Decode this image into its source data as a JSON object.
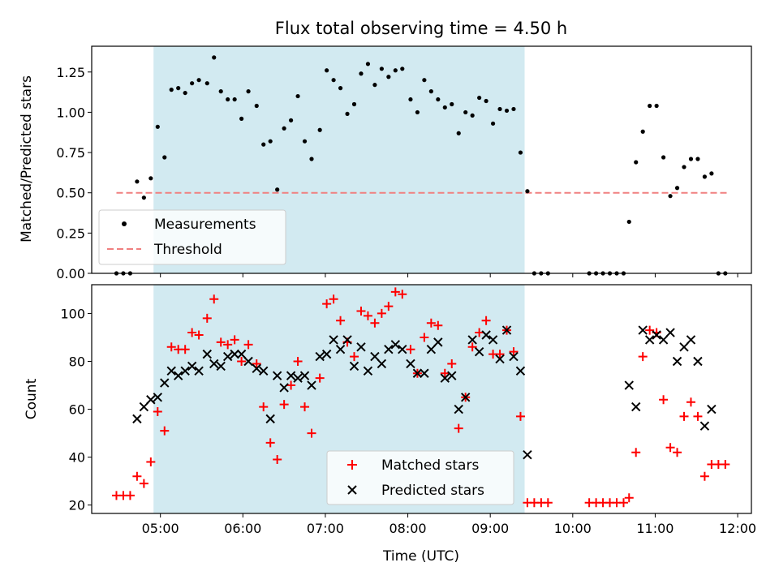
{
  "chart_data": [
    {
      "type": "scatter",
      "title": "Flux total observing time = 4.50 h",
      "xlabel": "",
      "ylabel": "Matched/Predicted stars",
      "xlim": [
        "04:10",
        "12:10"
      ],
      "ylim": [
        0,
        1.41
      ],
      "yticks": [
        "0.00",
        "0.25",
        "0.50",
        "0.75",
        "1.00",
        "1.25"
      ],
      "shaded_interval": [
        "04:55",
        "09:25"
      ],
      "shade_color": "#add8e6",
      "threshold": {
        "name": "Threshold",
        "value": 0.5,
        "x_range": [
          "04:28",
          "11:52"
        ],
        "color": "#f08080"
      },
      "series": [
        {
          "name": "Measurements",
          "color": "#000000",
          "points": [
            [
              "04:28",
              0
            ],
            [
              "04:33",
              0
            ],
            [
              "04:38",
              0
            ],
            [
              "04:43",
              0.57
            ],
            [
              "04:48",
              0.47
            ],
            [
              "04:53",
              0.59
            ],
            [
              "04:58",
              0.91
            ],
            [
              "05:03",
              0.72
            ],
            [
              "05:08",
              1.14
            ],
            [
              "05:13",
              1.15
            ],
            [
              "05:18",
              1.12
            ],
            [
              "05:23",
              1.18
            ],
            [
              "05:28",
              1.2
            ],
            [
              "05:34",
              1.18
            ],
            [
              "05:39",
              1.34
            ],
            [
              "05:44",
              1.13
            ],
            [
              "05:49",
              1.08
            ],
            [
              "05:54",
              1.08
            ],
            [
              "05:59",
              0.96
            ],
            [
              "06:04",
              1.13
            ],
            [
              "06:10",
              1.04
            ],
            [
              "06:15",
              0.8
            ],
            [
              "06:20",
              0.82
            ],
            [
              "06:25",
              0.52
            ],
            [
              "06:30",
              0.9
            ],
            [
              "06:35",
              0.95
            ],
            [
              "06:40",
              1.1
            ],
            [
              "06:45",
              0.82
            ],
            [
              "06:50",
              0.71
            ],
            [
              "06:56",
              0.89
            ],
            [
              "07:01",
              1.26
            ],
            [
              "07:06",
              1.2
            ],
            [
              "07:11",
              1.15
            ],
            [
              "07:16",
              0.99
            ],
            [
              "07:21",
              1.05
            ],
            [
              "07:26",
              1.24
            ],
            [
              "07:31",
              1.3
            ],
            [
              "07:36",
              1.17
            ],
            [
              "07:41",
              1.27
            ],
            [
              "07:46",
              1.22
            ],
            [
              "07:51",
              1.26
            ],
            [
              "07:56",
              1.27
            ],
            [
              "08:02",
              1.08
            ],
            [
              "08:07",
              1
            ],
            [
              "08:12",
              1.2
            ],
            [
              "08:17",
              1.13
            ],
            [
              "08:22",
              1.08
            ],
            [
              "08:27",
              1.03
            ],
            [
              "08:32",
              1.05
            ],
            [
              "08:37",
              0.87
            ],
            [
              "08:42",
              1
            ],
            [
              "08:47",
              0.98
            ],
            [
              "08:52",
              1.09
            ],
            [
              "08:57",
              1.07
            ],
            [
              "09:02",
              0.93
            ],
            [
              "09:07",
              1.02
            ],
            [
              "09:12",
              1.01
            ],
            [
              "09:17",
              1.02
            ],
            [
              "09:22",
              0.75
            ],
            [
              "09:27",
              0.51
            ],
            [
              "09:32",
              0
            ],
            [
              "09:37",
              0
            ],
            [
              "09:42",
              0
            ],
            [
              "10:12",
              0
            ],
            [
              "10:17",
              0
            ],
            [
              "10:22",
              0
            ],
            [
              "10:27",
              0
            ],
            [
              "10:32",
              0
            ],
            [
              "10:37",
              0
            ],
            [
              "10:41",
              0.32
            ],
            [
              "10:46",
              0.69
            ],
            [
              "10:51",
              0.88
            ],
            [
              "10:56",
              1.04
            ],
            [
              "11:01",
              1.04
            ],
            [
              "11:06",
              0.72
            ],
            [
              "11:11",
              0.48
            ],
            [
              "11:16",
              0.53
            ],
            [
              "11:21",
              0.66
            ],
            [
              "11:26",
              0.71
            ],
            [
              "11:31",
              0.71
            ],
            [
              "11:36",
              0.6
            ],
            [
              "11:41",
              0.62
            ],
            [
              "11:46",
              0
            ],
            [
              "11:51",
              0
            ]
          ]
        }
      ],
      "legend": [
        "Measurements",
        "Threshold"
      ],
      "legend_position": "lower-left"
    },
    {
      "type": "scatter",
      "title": "",
      "xlabel": "Time (UTC)",
      "ylabel": "Count",
      "xlim": [
        "04:10",
        "12:10"
      ],
      "ylim": [
        16.5,
        112
      ],
      "xticks": [
        "05:00",
        "06:00",
        "07:00",
        "08:00",
        "09:00",
        "10:00",
        "11:00",
        "12:00"
      ],
      "yticks": [
        "20",
        "40",
        "60",
        "80",
        "100"
      ],
      "shaded_interval": [
        "04:55",
        "09:25"
      ],
      "shade_color": "#add8e6",
      "series": [
        {
          "name": "Matched stars",
          "marker": "plus",
          "color": "#ff0000",
          "points": [
            [
              "04:28",
              24
            ],
            [
              "04:33",
              24
            ],
            [
              "04:38",
              24
            ],
            [
              "04:43",
              32
            ],
            [
              "04:48",
              29
            ],
            [
              "04:53",
              38
            ],
            [
              "04:58",
              59
            ],
            [
              "05:03",
              51
            ],
            [
              "05:08",
              86
            ],
            [
              "05:13",
              85
            ],
            [
              "05:18",
              85
            ],
            [
              "05:23",
              92
            ],
            [
              "05:28",
              91
            ],
            [
              "05:34",
              98
            ],
            [
              "05:39",
              106
            ],
            [
              "05:44",
              88
            ],
            [
              "05:49",
              87
            ],
            [
              "05:54",
              89
            ],
            [
              "05:59",
              80
            ],
            [
              "06:04",
              87
            ],
            [
              "06:10",
              79
            ],
            [
              "06:15",
              61
            ],
            [
              "06:20",
              46
            ],
            [
              "06:25",
              39
            ],
            [
              "06:30",
              62
            ],
            [
              "06:35",
              70
            ],
            [
              "06:40",
              80
            ],
            [
              "06:45",
              61
            ],
            [
              "06:50",
              50
            ],
            [
              "06:56",
              73
            ],
            [
              "07:01",
              104
            ],
            [
              "07:06",
              106
            ],
            [
              "07:11",
              97
            ],
            [
              "07:16",
              88
            ],
            [
              "07:21",
              82
            ],
            [
              "07:26",
              101
            ],
            [
              "07:31",
              99
            ],
            [
              "07:36",
              96
            ],
            [
              "07:41",
              100
            ],
            [
              "07:46",
              103
            ],
            [
              "07:51",
              109
            ],
            [
              "07:56",
              108
            ],
            [
              "08:02",
              85
            ],
            [
              "08:07",
              75
            ],
            [
              "08:12",
              90
            ],
            [
              "08:17",
              96
            ],
            [
              "08:22",
              95
            ],
            [
              "08:27",
              75
            ],
            [
              "08:32",
              79
            ],
            [
              "08:37",
              52
            ],
            [
              "08:42",
              65
            ],
            [
              "08:47",
              86
            ],
            [
              "08:52",
              92
            ],
            [
              "08:57",
              97
            ],
            [
              "09:02",
              83
            ],
            [
              "09:07",
              83
            ],
            [
              "09:12",
              93
            ],
            [
              "09:17",
              84
            ],
            [
              "09:22",
              57
            ],
            [
              "09:27",
              21
            ],
            [
              "09:32",
              21
            ],
            [
              "09:37",
              21
            ],
            [
              "09:42",
              21
            ],
            [
              "10:12",
              21
            ],
            [
              "10:17",
              21
            ],
            [
              "10:22",
              21
            ],
            [
              "10:27",
              21
            ],
            [
              "10:32",
              21
            ],
            [
              "10:37",
              21
            ],
            [
              "10:41",
              23
            ],
            [
              "10:46",
              42
            ],
            [
              "10:51",
              82
            ],
            [
              "10:56",
              93
            ],
            [
              "11:01",
              92
            ],
            [
              "11:06",
              64
            ],
            [
              "11:11",
              44
            ],
            [
              "11:16",
              42
            ],
            [
              "11:21",
              57
            ],
            [
              "11:26",
              63
            ],
            [
              "11:31",
              57
            ],
            [
              "11:36",
              32
            ],
            [
              "11:41",
              37
            ],
            [
              "11:46",
              37
            ],
            [
              "11:51",
              37
            ]
          ]
        },
        {
          "name": "Predicted stars",
          "marker": "x",
          "color": "#000000",
          "points": [
            [
              "04:43",
              56
            ],
            [
              "04:48",
              61
            ],
            [
              "04:53",
              64
            ],
            [
              "04:58",
              65
            ],
            [
              "05:03",
              71
            ],
            [
              "05:08",
              76
            ],
            [
              "05:13",
              74
            ],
            [
              "05:18",
              76
            ],
            [
              "05:23",
              78
            ],
            [
              "05:28",
              76
            ],
            [
              "05:34",
              83
            ],
            [
              "05:39",
              79
            ],
            [
              "05:44",
              78
            ],
            [
              "05:49",
              82
            ],
            [
              "05:54",
              83
            ],
            [
              "05:59",
              83
            ],
            [
              "06:04",
              80
            ],
            [
              "06:10",
              77
            ],
            [
              "06:15",
              76
            ],
            [
              "06:20",
              56
            ],
            [
              "06:25",
              74
            ],
            [
              "06:30",
              69
            ],
            [
              "06:35",
              74
            ],
            [
              "06:40",
              73
            ],
            [
              "06:45",
              74
            ],
            [
              "06:50",
              70
            ],
            [
              "06:56",
              82
            ],
            [
              "07:01",
              83
            ],
            [
              "07:06",
              89
            ],
            [
              "07:11",
              85
            ],
            [
              "07:16",
              89
            ],
            [
              "07:21",
              78
            ],
            [
              "07:26",
              86
            ],
            [
              "07:31",
              76
            ],
            [
              "07:36",
              82
            ],
            [
              "07:41",
              79
            ],
            [
              "07:46",
              85
            ],
            [
              "07:51",
              87
            ],
            [
              "07:56",
              85
            ],
            [
              "08:02",
              79
            ],
            [
              "08:07",
              75
            ],
            [
              "08:12",
              75
            ],
            [
              "08:17",
              85
            ],
            [
              "08:22",
              88
            ],
            [
              "08:27",
              73
            ],
            [
              "08:32",
              74
            ],
            [
              "08:37",
              60
            ],
            [
              "08:42",
              65
            ],
            [
              "08:47",
              89
            ],
            [
              "08:52",
              84
            ],
            [
              "08:57",
              91
            ],
            [
              "09:02",
              89
            ],
            [
              "09:07",
              81
            ],
            [
              "09:12",
              93
            ],
            [
              "09:17",
              82
            ],
            [
              "09:22",
              76
            ],
            [
              "09:27",
              41
            ],
            [
              "10:41",
              70
            ],
            [
              "10:46",
              61
            ],
            [
              "10:51",
              93
            ],
            [
              "10:56",
              89
            ],
            [
              "11:01",
              91
            ],
            [
              "11:06",
              89
            ],
            [
              "11:11",
              92
            ],
            [
              "11:16",
              80
            ],
            [
              "11:21",
              86
            ],
            [
              "11:26",
              89
            ],
            [
              "11:31",
              80
            ],
            [
              "11:36",
              53
            ],
            [
              "11:41",
              60
            ]
          ]
        }
      ],
      "legend": [
        "Matched stars",
        "Predicted stars"
      ],
      "legend_position": "lower-center"
    }
  ]
}
